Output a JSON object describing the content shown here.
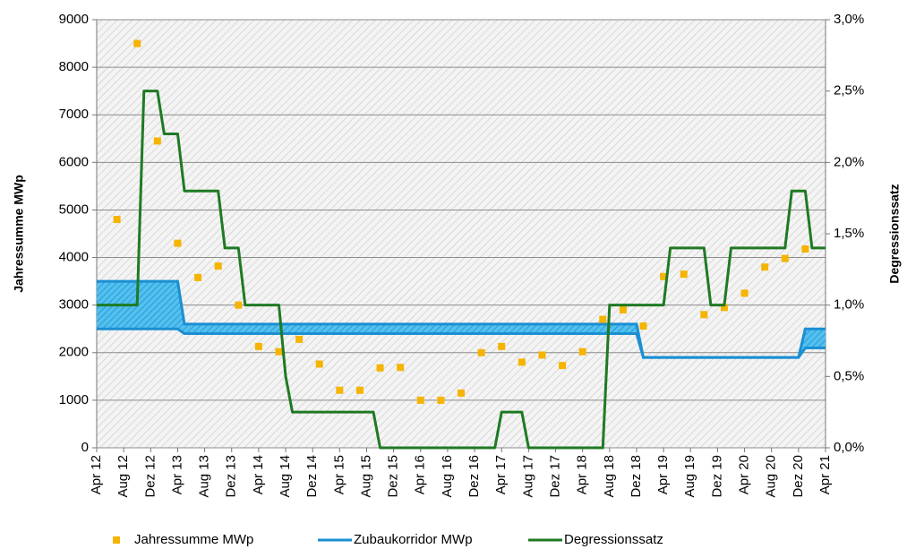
{
  "chart_data": {
    "type": "combo",
    "x_title": null,
    "y_title": "Jahressumme MWp",
    "y2_title": "Degressionssatz",
    "xlim": [
      0,
      108
    ],
    "xticks": [
      {
        "value": 0,
        "label": "Apr 12"
      },
      {
        "value": 4,
        "label": "Aug 12"
      },
      {
        "value": 8,
        "label": "Dez 12"
      },
      {
        "value": 12,
        "label": "Apr 13"
      },
      {
        "value": 16,
        "label": "Aug 13"
      },
      {
        "value": 20,
        "label": "Dez 13"
      },
      {
        "value": 24,
        "label": "Apr 14"
      },
      {
        "value": 28,
        "label": "Aug 14"
      },
      {
        "value": 32,
        "label": "Dez 14"
      },
      {
        "value": 36,
        "label": "Apr 15"
      },
      {
        "value": 40,
        "label": "Aug 15"
      },
      {
        "value": 44,
        "label": "Dez 15"
      },
      {
        "value": 48,
        "label": "Apr 16"
      },
      {
        "value": 52,
        "label": "Aug 16"
      },
      {
        "value": 56,
        "label": "Dez 16"
      },
      {
        "value": 60,
        "label": "Apr 17"
      },
      {
        "value": 64,
        "label": "Aug 17"
      },
      {
        "value": 68,
        "label": "Dez 17"
      },
      {
        "value": 72,
        "label": "Apr 18"
      },
      {
        "value": 76,
        "label": "Aug 18"
      },
      {
        "value": 80,
        "label": "Dez 18"
      },
      {
        "value": 84,
        "label": "Apr 19"
      },
      {
        "value": 88,
        "label": "Aug 19"
      },
      {
        "value": 92,
        "label": "Dez 19"
      },
      {
        "value": 96,
        "label": "Apr 20"
      },
      {
        "value": 100,
        "label": "Aug 20"
      },
      {
        "value": 104,
        "label": "Dez 20"
      },
      {
        "value": 108,
        "label": "Apr 21"
      }
    ],
    "ylim": [
      0,
      9000
    ],
    "yticks": [
      0,
      1000,
      2000,
      3000,
      4000,
      5000,
      6000,
      7000,
      8000,
      9000
    ],
    "y2lim": [
      0,
      3
    ],
    "y2ticks": [
      {
        "value": 0,
        "label": "0,0%"
      },
      {
        "value": 0.5,
        "label": "0,5%"
      },
      {
        "value": 1,
        "label": "1,0%"
      },
      {
        "value": 1.5,
        "label": "1,5%"
      },
      {
        "value": 2,
        "label": "2,0%"
      },
      {
        "value": 2.5,
        "label": "2,5%"
      },
      {
        "value": 3,
        "label": "3,0%"
      }
    ],
    "grid": true,
    "legend": "bottom",
    "series": [
      {
        "name": "Jahressumme MWp",
        "type": "scatter",
        "color": "#f5b400",
        "x": [
          3,
          6,
          9,
          12,
          15,
          18,
          21,
          24,
          27,
          30,
          33,
          36,
          39,
          42,
          45,
          48,
          51,
          54,
          57,
          60,
          63,
          66,
          69,
          72,
          75,
          78,
          81,
          84,
          87,
          90,
          93,
          96,
          99,
          102,
          105
        ],
        "values": [
          4800,
          8500,
          6450,
          4300,
          3580,
          3820,
          3000,
          2130,
          2020,
          2280,
          1760,
          1210,
          1210,
          1680,
          1690,
          1000,
          1000,
          1150,
          2000,
          2130,
          1800,
          1950,
          1730,
          2020,
          2700,
          2900,
          2560,
          3600,
          3650,
          2800,
          2950,
          3250,
          3800,
          3980,
          4180
        ]
      },
      {
        "name": "Zubaukorridor MWp",
        "type": "band",
        "color": "#1b8fd2",
        "x": [
          0,
          12,
          13,
          80,
          81,
          104,
          105,
          108
        ],
        "values": [
          3500,
          3500,
          2600,
          2600,
          1900,
          1900,
          2500,
          2500
        ],
        "lower": [
          2500,
          2500,
          2400,
          2400,
          1900,
          1900,
          2100,
          2100
        ]
      },
      {
        "name": "Degressionssatz",
        "type": "line",
        "axis": "y2",
        "color": "#1f7a23",
        "x": [
          0,
          6,
          7,
          9,
          10,
          12,
          13,
          18,
          19,
          21,
          22,
          27,
          28,
          29,
          41,
          42,
          59,
          60,
          63,
          64,
          75,
          76,
          84,
          85,
          90,
          91,
          93,
          94,
          102,
          103,
          105,
          106,
          108
        ],
        "values": [
          1,
          1,
          2.5,
          2.5,
          2.2,
          2.2,
          1.8,
          1.8,
          1.4,
          1.4,
          1,
          1,
          0.5,
          0.25,
          0.25,
          0,
          0,
          0.25,
          0.25,
          0,
          0,
          1,
          1,
          1.4,
          1.4,
          1,
          1,
          1.4,
          1.4,
          1.8,
          1.8,
          1.4,
          1.4
        ]
      }
    ]
  }
}
